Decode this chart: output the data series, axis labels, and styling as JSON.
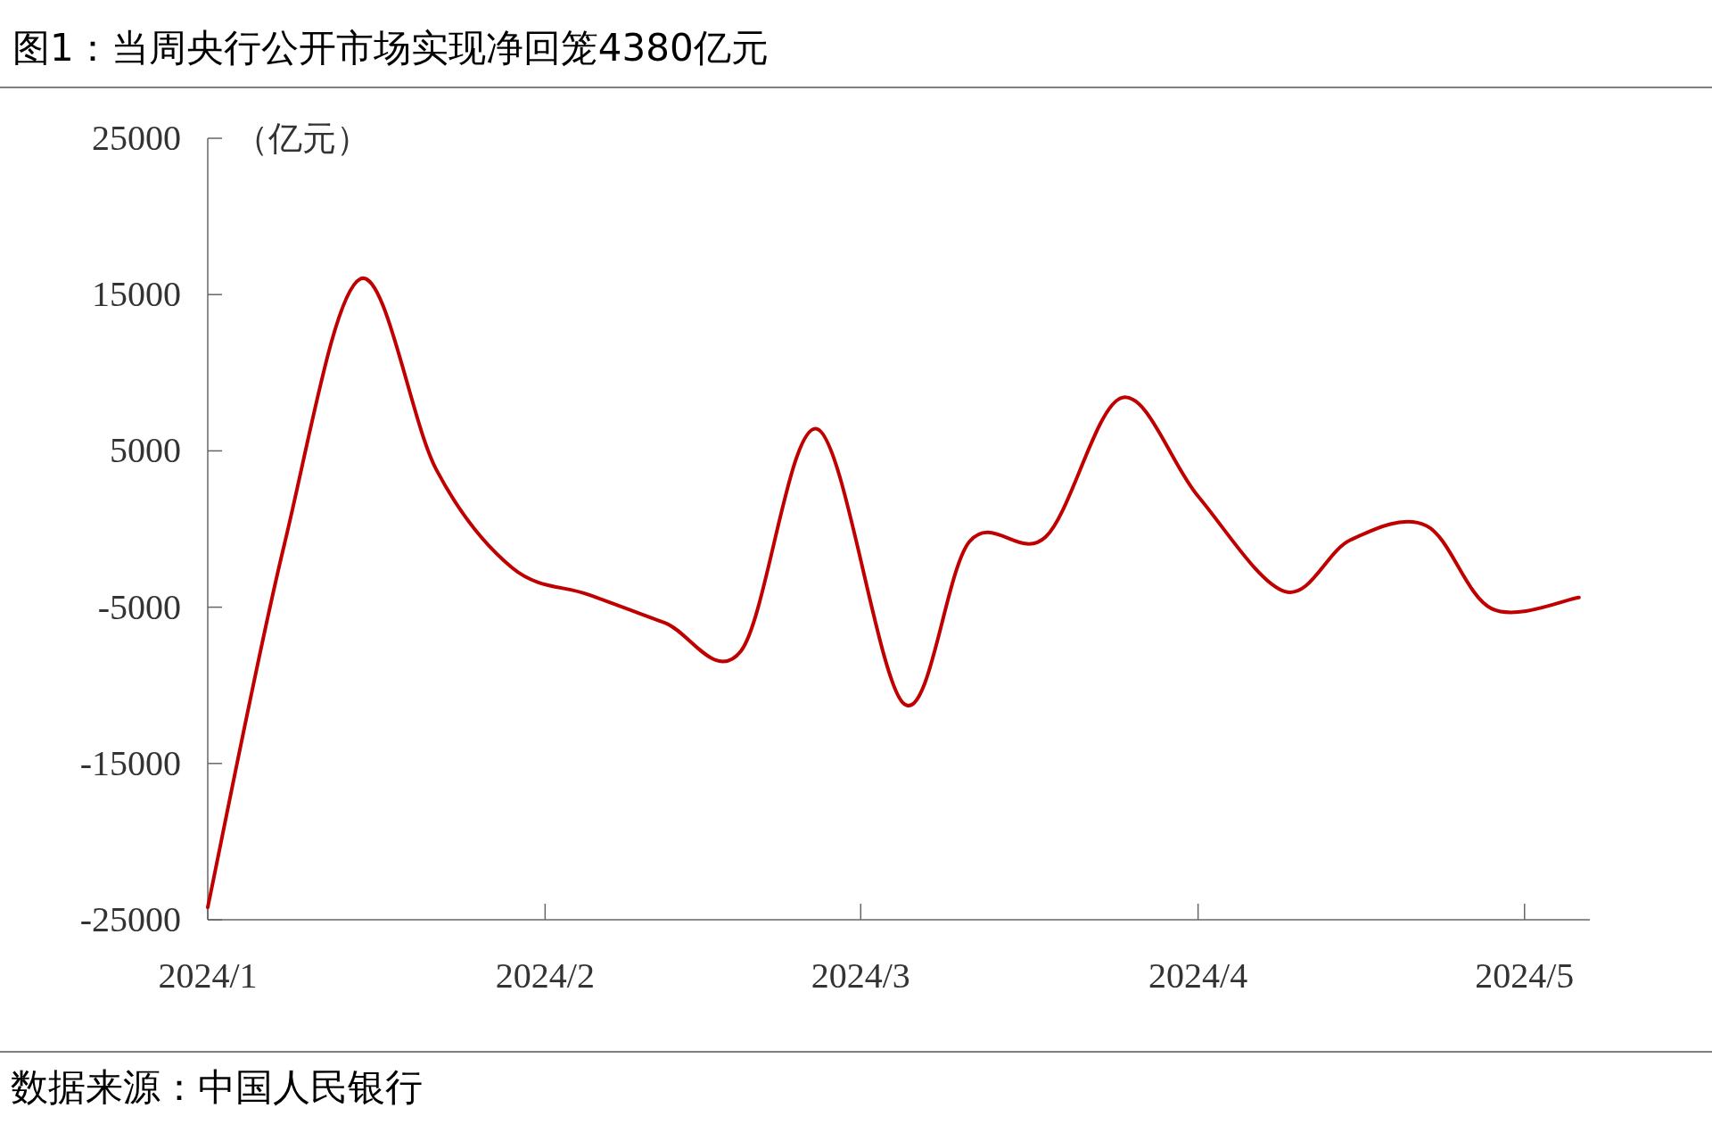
{
  "chart_data": {
    "type": "line",
    "title": "图1：当周央行公开市场实现净回笼4380亿元",
    "ylabel": "（亿元）",
    "annotations": [
      "数据来源：中国人民银行"
    ],
    "x": [
      "2024-01-01",
      "2024-01-08",
      "2024-01-15",
      "2024-01-22",
      "2024-01-29",
      "2024-02-05",
      "2024-02-12",
      "2024-02-19",
      "2024-02-26",
      "2024-03-05",
      "2024-03-11",
      "2024-03-18",
      "2024-03-25",
      "2024-04-01",
      "2024-04-09",
      "2024-04-15",
      "2024-04-22",
      "2024-04-28",
      "2024-05-06"
    ],
    "series": [
      {
        "color": "#c00000",
        "values": [
          -24200,
          -1100,
          16000,
          3800,
          -2500,
          -4200,
          -6000,
          -7800,
          6400,
          -11200,
          -800,
          -500,
          8400,
          2100,
          -4000,
          -700,
          200,
          -5100,
          -4380
        ]
      }
    ],
    "xlim": [
      "2024-01-01",
      "2024-05-07"
    ],
    "ylim": [
      -25000,
      25000
    ],
    "xticks": [
      {
        "value": "2024-01-01",
        "label": "2024/1"
      },
      {
        "value": "2024-02-01",
        "label": "2024/2"
      },
      {
        "value": "2024-03-01",
        "label": "2024/3"
      },
      {
        "value": "2024-04-01",
        "label": "2024/4"
      },
      {
        "value": "2024-05-01",
        "label": "2024/5"
      }
    ],
    "yticks": [
      -25000,
      -15000,
      -5000,
      5000,
      15000,
      25000
    ],
    "grid": false,
    "marker": "none",
    "line_style": "solid"
  }
}
